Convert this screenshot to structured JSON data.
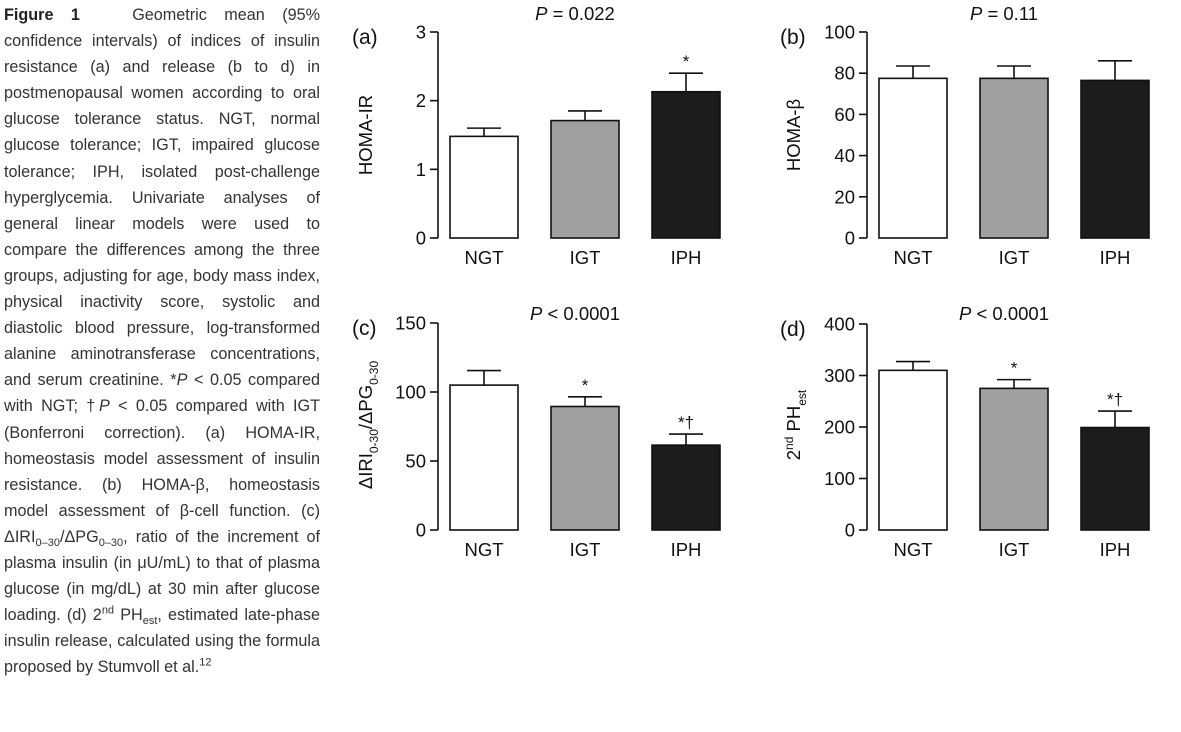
{
  "caption": {
    "figure_label": "Figure 1",
    "t1": "Geometric mean (95% confidence intervals) of indices of insulin resistance (a) and release (b to d) in postmenopausal women according to oral glucose tolerance status. NGT, normal glucose tolerance; IGT, impaired glucose tolerance; IPH, isolated post-challenge hyperglycemia. Univariate analyses of general linear models were used to compare the differences among the three groups, adjusting for age, body mass index, physical inactivity score, systolic and diastolic blood pressure, log-transformed alanine aminotransferase concentrations, and serum creatinine. *",
    "p1": "P",
    "t2": " < 0.05 compared with NGT; †",
    "p2": "P",
    "t3": " < 0.05 compared with IGT (Bonferroni correction). (a) HOMA-IR, homeostasis model assessment of insulin resistance. (b) HOMA-β, homeostasis model assessment of β-cell function. (c) ΔIRI",
    "sub1": "0–30",
    "t4": "/ΔPG",
    "sub2": "0–30",
    "t5": ", ratio of the increment of plasma insulin (in μU/mL) to that of plasma glucose (in mg/dL) at 30 min after glucose loading. (d) 2",
    "sup1": "nd",
    "t6": " PH",
    "sub3": "est",
    "t7": ", estimated late-phase insulin release, calculated using the formula proposed by Stumvoll et al.",
    "sup2": "12"
  },
  "colors": {
    "NGT": "#ffffff",
    "IGT": "#a0a0a0",
    "IPH": "#1c1c1c",
    "stroke": "#111111"
  },
  "chart_data": [
    {
      "type": "bar",
      "panel": "(a)",
      "p_label": "P",
      "p_text": " = 0.022",
      "categories": [
        "NGT",
        "IGT",
        "IPH"
      ],
      "values": [
        1.48,
        1.71,
        2.13
      ],
      "error_upper": [
        1.6,
        1.85,
        2.4
      ],
      "annotations": [
        "",
        "",
        "*"
      ],
      "ylabel": {
        "main": "HOMA-IR",
        "sub1": "",
        "mid": "",
        "sub2": "",
        "sup": ""
      },
      "yticks": [
        0,
        1,
        2,
        3
      ],
      "ylim": [
        0,
        3
      ]
    },
    {
      "type": "bar",
      "panel": "(b)",
      "p_label": "P",
      "p_text": " = 0.11",
      "categories": [
        "NGT",
        "IGT",
        "IPH"
      ],
      "values": [
        77.5,
        77.5,
        76.5
      ],
      "error_upper": [
        83.5,
        83.5,
        86.0
      ],
      "annotations": [
        "",
        "",
        ""
      ],
      "ylabel": {
        "main": "HOMA-β",
        "sub1": "",
        "mid": "",
        "sub2": "",
        "sup": ""
      },
      "yticks": [
        0,
        20,
        40,
        60,
        80,
        100
      ],
      "ylim": [
        0,
        100
      ]
    },
    {
      "type": "bar",
      "panel": "(c)",
      "p_label": "P",
      "p_text": " < 0.0001",
      "categories": [
        "NGT",
        "IGT",
        "IPH"
      ],
      "values": [
        105,
        89.5,
        61.5
      ],
      "error_upper": [
        115.5,
        96.5,
        69.5
      ],
      "annotations": [
        "",
        "*",
        "*†"
      ],
      "ylabel": {
        "main": "ΔIRI",
        "sub1": "0-30",
        "mid": "/ΔPG",
        "sub2": "0-30",
        "sup": ""
      },
      "yticks": [
        0,
        50,
        100,
        150
      ],
      "ylim": [
        0,
        150
      ]
    },
    {
      "type": "bar",
      "panel": "(d)",
      "p_label": "P",
      "p_text": " < 0.0001",
      "categories": [
        "NGT",
        "IGT",
        "IPH"
      ],
      "values": [
        310,
        275,
        199
      ],
      "error_upper": [
        327,
        292,
        231
      ],
      "annotations": [
        "",
        "*",
        "*†"
      ],
      "ylabel": {
        "main": "2",
        "sup": "nd",
        "mid": " PH",
        "sub2": "est",
        "sub1": ""
      },
      "yticks": [
        0,
        100,
        200,
        300,
        400
      ],
      "ylim": [
        0,
        400
      ]
    }
  ]
}
